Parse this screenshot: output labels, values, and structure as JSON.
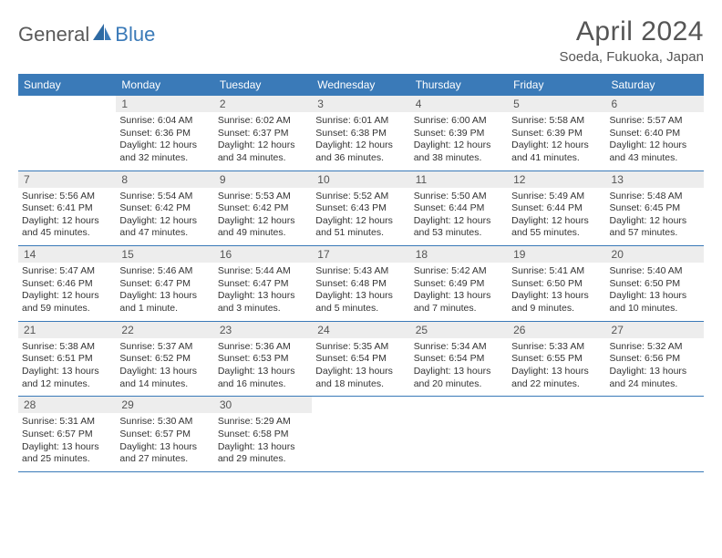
{
  "logo": {
    "part1": "General",
    "part2": "Blue"
  },
  "title": "April 2024",
  "location": "Soeda, Fukuoka, Japan",
  "colors": {
    "header_bg": "#3a7ab8",
    "daynum_bg": "#ededed",
    "text": "#555555",
    "divider": "#3a7ab8"
  },
  "days_of_week": [
    "Sunday",
    "Monday",
    "Tuesday",
    "Wednesday",
    "Thursday",
    "Friday",
    "Saturday"
  ],
  "weeks": [
    [
      {
        "n": "",
        "sunrise": "",
        "sunset": "",
        "daylight": ""
      },
      {
        "n": "1",
        "sunrise": "Sunrise: 6:04 AM",
        "sunset": "Sunset: 6:36 PM",
        "daylight": "Daylight: 12 hours and 32 minutes."
      },
      {
        "n": "2",
        "sunrise": "Sunrise: 6:02 AM",
        "sunset": "Sunset: 6:37 PM",
        "daylight": "Daylight: 12 hours and 34 minutes."
      },
      {
        "n": "3",
        "sunrise": "Sunrise: 6:01 AM",
        "sunset": "Sunset: 6:38 PM",
        "daylight": "Daylight: 12 hours and 36 minutes."
      },
      {
        "n": "4",
        "sunrise": "Sunrise: 6:00 AM",
        "sunset": "Sunset: 6:39 PM",
        "daylight": "Daylight: 12 hours and 38 minutes."
      },
      {
        "n": "5",
        "sunrise": "Sunrise: 5:58 AM",
        "sunset": "Sunset: 6:39 PM",
        "daylight": "Daylight: 12 hours and 41 minutes."
      },
      {
        "n": "6",
        "sunrise": "Sunrise: 5:57 AM",
        "sunset": "Sunset: 6:40 PM",
        "daylight": "Daylight: 12 hours and 43 minutes."
      }
    ],
    [
      {
        "n": "7",
        "sunrise": "Sunrise: 5:56 AM",
        "sunset": "Sunset: 6:41 PM",
        "daylight": "Daylight: 12 hours and 45 minutes."
      },
      {
        "n": "8",
        "sunrise": "Sunrise: 5:54 AM",
        "sunset": "Sunset: 6:42 PM",
        "daylight": "Daylight: 12 hours and 47 minutes."
      },
      {
        "n": "9",
        "sunrise": "Sunrise: 5:53 AM",
        "sunset": "Sunset: 6:42 PM",
        "daylight": "Daylight: 12 hours and 49 minutes."
      },
      {
        "n": "10",
        "sunrise": "Sunrise: 5:52 AM",
        "sunset": "Sunset: 6:43 PM",
        "daylight": "Daylight: 12 hours and 51 minutes."
      },
      {
        "n": "11",
        "sunrise": "Sunrise: 5:50 AM",
        "sunset": "Sunset: 6:44 PM",
        "daylight": "Daylight: 12 hours and 53 minutes."
      },
      {
        "n": "12",
        "sunrise": "Sunrise: 5:49 AM",
        "sunset": "Sunset: 6:44 PM",
        "daylight": "Daylight: 12 hours and 55 minutes."
      },
      {
        "n": "13",
        "sunrise": "Sunrise: 5:48 AM",
        "sunset": "Sunset: 6:45 PM",
        "daylight": "Daylight: 12 hours and 57 minutes."
      }
    ],
    [
      {
        "n": "14",
        "sunrise": "Sunrise: 5:47 AM",
        "sunset": "Sunset: 6:46 PM",
        "daylight": "Daylight: 12 hours and 59 minutes."
      },
      {
        "n": "15",
        "sunrise": "Sunrise: 5:46 AM",
        "sunset": "Sunset: 6:47 PM",
        "daylight": "Daylight: 13 hours and 1 minute."
      },
      {
        "n": "16",
        "sunrise": "Sunrise: 5:44 AM",
        "sunset": "Sunset: 6:47 PM",
        "daylight": "Daylight: 13 hours and 3 minutes."
      },
      {
        "n": "17",
        "sunrise": "Sunrise: 5:43 AM",
        "sunset": "Sunset: 6:48 PM",
        "daylight": "Daylight: 13 hours and 5 minutes."
      },
      {
        "n": "18",
        "sunrise": "Sunrise: 5:42 AM",
        "sunset": "Sunset: 6:49 PM",
        "daylight": "Daylight: 13 hours and 7 minutes."
      },
      {
        "n": "19",
        "sunrise": "Sunrise: 5:41 AM",
        "sunset": "Sunset: 6:50 PM",
        "daylight": "Daylight: 13 hours and 9 minutes."
      },
      {
        "n": "20",
        "sunrise": "Sunrise: 5:40 AM",
        "sunset": "Sunset: 6:50 PM",
        "daylight": "Daylight: 13 hours and 10 minutes."
      }
    ],
    [
      {
        "n": "21",
        "sunrise": "Sunrise: 5:38 AM",
        "sunset": "Sunset: 6:51 PM",
        "daylight": "Daylight: 13 hours and 12 minutes."
      },
      {
        "n": "22",
        "sunrise": "Sunrise: 5:37 AM",
        "sunset": "Sunset: 6:52 PM",
        "daylight": "Daylight: 13 hours and 14 minutes."
      },
      {
        "n": "23",
        "sunrise": "Sunrise: 5:36 AM",
        "sunset": "Sunset: 6:53 PM",
        "daylight": "Daylight: 13 hours and 16 minutes."
      },
      {
        "n": "24",
        "sunrise": "Sunrise: 5:35 AM",
        "sunset": "Sunset: 6:54 PM",
        "daylight": "Daylight: 13 hours and 18 minutes."
      },
      {
        "n": "25",
        "sunrise": "Sunrise: 5:34 AM",
        "sunset": "Sunset: 6:54 PM",
        "daylight": "Daylight: 13 hours and 20 minutes."
      },
      {
        "n": "26",
        "sunrise": "Sunrise: 5:33 AM",
        "sunset": "Sunset: 6:55 PM",
        "daylight": "Daylight: 13 hours and 22 minutes."
      },
      {
        "n": "27",
        "sunrise": "Sunrise: 5:32 AM",
        "sunset": "Sunset: 6:56 PM",
        "daylight": "Daylight: 13 hours and 24 minutes."
      }
    ],
    [
      {
        "n": "28",
        "sunrise": "Sunrise: 5:31 AM",
        "sunset": "Sunset: 6:57 PM",
        "daylight": "Daylight: 13 hours and 25 minutes."
      },
      {
        "n": "29",
        "sunrise": "Sunrise: 5:30 AM",
        "sunset": "Sunset: 6:57 PM",
        "daylight": "Daylight: 13 hours and 27 minutes."
      },
      {
        "n": "30",
        "sunrise": "Sunrise: 5:29 AM",
        "sunset": "Sunset: 6:58 PM",
        "daylight": "Daylight: 13 hours and 29 minutes."
      },
      {
        "n": "",
        "sunrise": "",
        "sunset": "",
        "daylight": ""
      },
      {
        "n": "",
        "sunrise": "",
        "sunset": "",
        "daylight": ""
      },
      {
        "n": "",
        "sunrise": "",
        "sunset": "",
        "daylight": ""
      },
      {
        "n": "",
        "sunrise": "",
        "sunset": "",
        "daylight": ""
      }
    ]
  ]
}
